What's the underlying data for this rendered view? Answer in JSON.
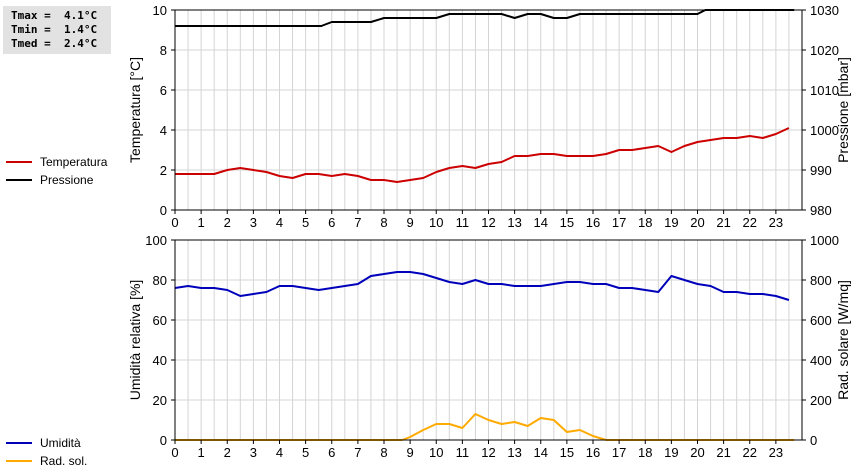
{
  "stats": [
    {
      "label": "Tmax",
      "value": "4.1°C"
    },
    {
      "label": "Tmin",
      "value": "1.4°C"
    },
    {
      "label": "Tmed",
      "value": "2.4°C"
    }
  ],
  "chart_data": [
    {
      "type": "line",
      "xlim": [
        0,
        24
      ],
      "x_ticks": [
        "0",
        "1",
        "2",
        "3",
        "4",
        "5",
        "6",
        "7",
        "8",
        "9",
        "10",
        "11",
        "12",
        "13",
        "14",
        "15",
        "16",
        "17",
        "18",
        "19",
        "20",
        "21",
        "22",
        "23"
      ],
      "ylabel": "Temperatura [°C]",
      "ylim": [
        0,
        10
      ],
      "y_ticks": [
        "0",
        "2",
        "4",
        "6",
        "8",
        "10"
      ],
      "y2label": "Pressione [mbar]",
      "y2lim": [
        980,
        1030
      ],
      "y2_ticks": [
        "980",
        "990",
        "1000",
        "1010",
        "1020",
        "1030"
      ],
      "grid": true,
      "legend_position": "left",
      "series": [
        {
          "name": "Temperatura",
          "axis": "left",
          "color": "#cc0000",
          "x": [
            0,
            0.5,
            1,
            1.5,
            2,
            2.5,
            3,
            3.5,
            4,
            4.5,
            5,
            5.5,
            6,
            6.5,
            7,
            7.5,
            8,
            8.5,
            9,
            9.5,
            10,
            10.5,
            11,
            11.5,
            12,
            12.5,
            13,
            13.5,
            14,
            14.5,
            15,
            15.5,
            16,
            16.5,
            17,
            17.5,
            18,
            18.5,
            19,
            19.5,
            20,
            20.5,
            21,
            21.5,
            22,
            22.5,
            23,
            23.5
          ],
          "y": [
            1.8,
            1.8,
            1.8,
            1.8,
            2.0,
            2.1,
            2.0,
            1.9,
            1.7,
            1.6,
            1.8,
            1.8,
            1.7,
            1.8,
            1.7,
            1.5,
            1.5,
            1.4,
            1.5,
            1.6,
            1.9,
            2.1,
            2.2,
            2.1,
            2.3,
            2.4,
            2.7,
            2.7,
            2.8,
            2.8,
            2.7,
            2.7,
            2.7,
            2.8,
            3.0,
            3.0,
            3.1,
            3.2,
            2.9,
            3.2,
            3.4,
            3.5,
            3.6,
            3.6,
            3.7,
            3.6,
            3.8,
            4.1
          ]
        },
        {
          "name": "Pressione",
          "axis": "right",
          "color": "#000000",
          "x": [
            0,
            1,
            2,
            3,
            4,
            5,
            5.6,
            6,
            6.5,
            7,
            7.5,
            8,
            8.5,
            9,
            9.5,
            10,
            10.5,
            11,
            11.5,
            12,
            12.5,
            13,
            13.5,
            14,
            14.5,
            15,
            15.5,
            16,
            16.5,
            17,
            17.5,
            18,
            18.5,
            19,
            19.5,
            20,
            20.3,
            20.6,
            21,
            22,
            23,
            23.7
          ],
          "y": [
            1026,
            1026,
            1026,
            1026,
            1026,
            1026,
            1026,
            1027,
            1027,
            1027,
            1027,
            1028,
            1028,
            1028,
            1028,
            1028,
            1029,
            1029,
            1029,
            1029,
            1029,
            1028,
            1029,
            1029,
            1028,
            1028,
            1029,
            1029,
            1029,
            1029,
            1029,
            1029,
            1029,
            1029,
            1029,
            1029,
            1030,
            1030,
            1030,
            1030,
            1030,
            1030
          ]
        }
      ]
    },
    {
      "type": "line",
      "xlim": [
        0,
        24
      ],
      "x_ticks": [
        "0",
        "1",
        "2",
        "3",
        "4",
        "5",
        "6",
        "7",
        "8",
        "9",
        "10",
        "11",
        "12",
        "13",
        "14",
        "15",
        "16",
        "17",
        "18",
        "19",
        "20",
        "21",
        "22",
        "23"
      ],
      "ylabel": "Umidità relativa [%]",
      "ylim": [
        0,
        100
      ],
      "y_ticks": [
        "0",
        "20",
        "40",
        "60",
        "80",
        "100"
      ],
      "y2label": "Rad. solare [W/mq]",
      "y2lim": [
        0,
        1000
      ],
      "y2_ticks": [
        "0",
        "200",
        "400",
        "600",
        "800",
        "1000"
      ],
      "grid": true,
      "legend_position": "left",
      "series": [
        {
          "name": "Umidità",
          "axis": "left",
          "color": "#0000bb",
          "x": [
            0,
            0.5,
            1,
            1.5,
            2,
            2.5,
            3,
            3.5,
            4,
            4.5,
            5,
            5.5,
            6,
            6.5,
            7,
            7.5,
            8,
            8.5,
            9,
            9.5,
            10,
            10.5,
            11,
            11.5,
            12,
            12.5,
            13,
            13.5,
            14,
            14.5,
            15,
            15.5,
            16,
            16.5,
            17,
            17.5,
            18,
            18.5,
            19,
            19.5,
            20,
            20.5,
            21,
            21.5,
            22,
            22.5,
            23,
            23.5
          ],
          "y": [
            76,
            77,
            76,
            76,
            75,
            72,
            73,
            74,
            77,
            77,
            76,
            75,
            76,
            77,
            78,
            82,
            83,
            84,
            84,
            83,
            81,
            79,
            78,
            80,
            78,
            78,
            77,
            77,
            77,
            78,
            79,
            79,
            78,
            78,
            76,
            76,
            75,
            74,
            82,
            80,
            78,
            77,
            74,
            74,
            73,
            73,
            72,
            70
          ]
        },
        {
          "name": "Rad. sol.",
          "axis": "right",
          "color": "#ffaa00",
          "x": [
            0,
            1,
            2,
            3,
            4,
            5,
            6,
            7,
            8,
            8.7,
            9,
            9.5,
            10,
            10.5,
            11,
            11.5,
            12,
            12.5,
            13,
            13.5,
            14,
            14.5,
            15,
            15.5,
            16,
            16.5,
            17,
            18,
            19,
            20,
            21,
            22,
            23,
            23.7
          ],
          "y": [
            0,
            0,
            0,
            0,
            0,
            0,
            0,
            0,
            0,
            0,
            15,
            50,
            80,
            80,
            60,
            130,
            100,
            80,
            90,
            70,
            110,
            100,
            40,
            50,
            20,
            0,
            0,
            0,
            0,
            0,
            0,
            0,
            0,
            0
          ]
        }
      ]
    }
  ]
}
